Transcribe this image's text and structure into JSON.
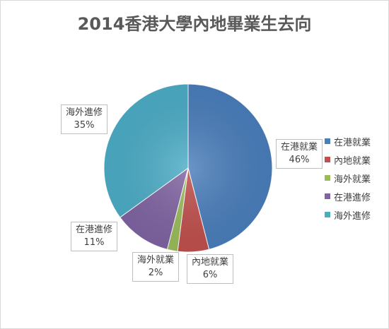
{
  "chart_data": {
    "type": "pie",
    "title": "2014香港大學內地畢業生去向",
    "categories": [
      "在港就業",
      "內地就業",
      "海外就業",
      "在港進修",
      "海外進修"
    ],
    "values": [
      46,
      6,
      2,
      11,
      35
    ],
    "value_labels": [
      "46%",
      "6%",
      "2%",
      "11%",
      "35%"
    ],
    "colors": [
      "#4a7ebb",
      "#c0504d",
      "#9bbb59",
      "#8064a2",
      "#4bacc6"
    ],
    "legend_position": "right",
    "start_angle_deg": 0,
    "direction": "clockwise"
  }
}
